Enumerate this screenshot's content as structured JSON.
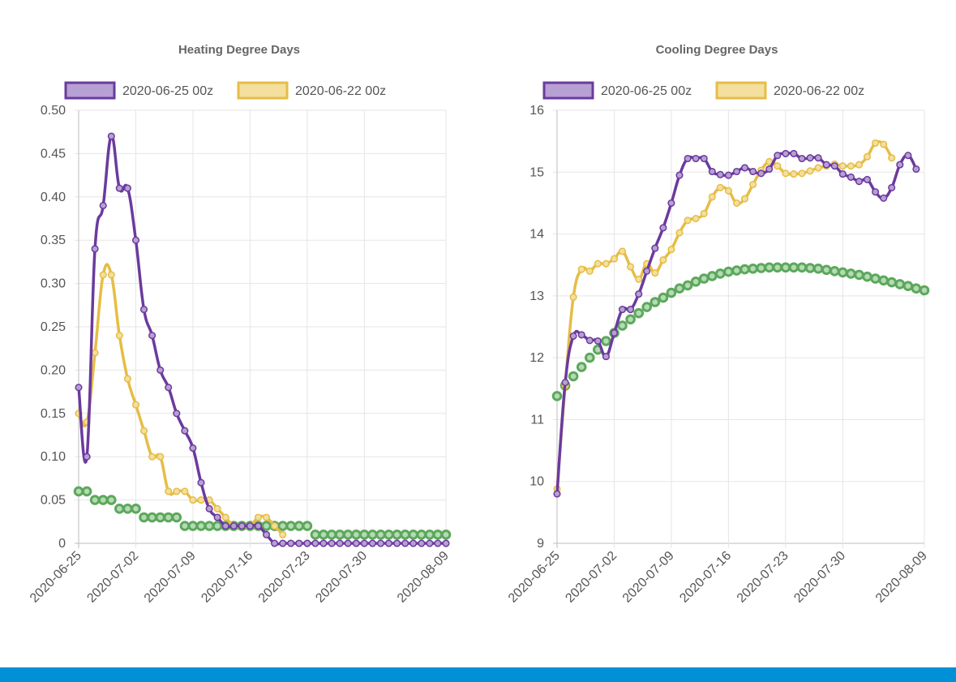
{
  "colors": {
    "run_new": "#6b3a9e",
    "run_new_fill": "#b7a0d3",
    "run_old": "#e6bd45",
    "run_old_fill": "#f3df9e",
    "normal": "#5ca85c",
    "footer": "#0090d6"
  },
  "chart_data": [
    {
      "type": "line",
      "title": "Heating Degree Days",
      "x_start": "2020-06-25",
      "x_ticks": [
        "2020-06-25",
        "2020-07-02",
        "2020-07-09",
        "2020-07-16",
        "2020-07-23",
        "2020-07-30",
        "2020-08-09"
      ],
      "y_ticks": [
        "0",
        "0.05",
        "0.10",
        "0.15",
        "0.20",
        "0.25",
        "0.30",
        "0.35",
        "0.40",
        "0.45",
        "0.50"
      ],
      "ylim": [
        0,
        0.5
      ],
      "grid": true,
      "legend": "top",
      "legend_entries": [
        "2020-06-25 00z",
        "2020-06-22 00z"
      ],
      "series": [
        {
          "name": "2020-06-25 00z",
          "values": [
            0.18,
            0.1,
            0.34,
            0.39,
            0.47,
            0.41,
            0.41,
            0.35,
            0.27,
            0.24,
            0.2,
            0.18,
            0.15,
            0.13,
            0.11,
            0.07,
            0.04,
            0.03,
            0.02,
            0.02,
            0.02,
            0.02,
            0.02,
            0.01,
            0,
            0,
            0,
            0,
            0,
            0,
            0,
            0,
            0,
            0,
            0,
            0,
            0,
            0,
            0,
            0,
            0,
            0,
            0,
            0,
            0,
            0
          ]
        },
        {
          "name": "2020-06-22 00z",
          "values": [
            0.15,
            0.14,
            0.22,
            0.31,
            0.31,
            0.24,
            0.19,
            0.16,
            0.13,
            0.1,
            0.1,
            0.06,
            0.06,
            0.06,
            0.05,
            0.05,
            0.05,
            0.04,
            0.03,
            0.02,
            0.02,
            0.02,
            0.03,
            0.03,
            0.02,
            0.01
          ]
        },
        {
          "name": "",
          "values": [
            0.06,
            0.06,
            0.05,
            0.05,
            0.05,
            0.04,
            0.04,
            0.04,
            0.03,
            0.03,
            0.03,
            0.03,
            0.03,
            0.02,
            0.02,
            0.02,
            0.02,
            0.02,
            0.02,
            0.02,
            0.02,
            0.02,
            0.02,
            0.02,
            0.02,
            0.02,
            0.02,
            0.02,
            0.02,
            0.01,
            0.01,
            0.01,
            0.01,
            0.01,
            0.01,
            0.01,
            0.01,
            0.01,
            0.01,
            0.01,
            0.01,
            0.01,
            0.01,
            0.01,
            0.01,
            0.01
          ]
        }
      ]
    },
    {
      "type": "line",
      "title": "Cooling Degree Days",
      "x_start": "2020-06-25",
      "x_ticks": [
        "2020-06-25",
        "2020-07-02",
        "2020-07-09",
        "2020-07-16",
        "2020-07-23",
        "2020-07-30",
        "2020-08-09"
      ],
      "y_ticks": [
        "9",
        "10",
        "11",
        "12",
        "13",
        "14",
        "15",
        "16"
      ],
      "ylim": [
        9,
        16
      ],
      "grid": true,
      "legend": "top",
      "legend_entries": [
        "2020-06-25 00z",
        "2020-06-22 00z"
      ],
      "series": [
        {
          "name": "2020-06-25 00z",
          "values": [
            9.8,
            11.6,
            12.35,
            12.37,
            12.28,
            12.27,
            12.02,
            12.4,
            12.78,
            12.78,
            13.03,
            13.4,
            13.77,
            14.1,
            14.5,
            14.95,
            15.22,
            15.22,
            15.22,
            15.01,
            14.96,
            14.95,
            15.01,
            15.07,
            15.01,
            14.98,
            15.05,
            15.27,
            15.3,
            15.3,
            15.22,
            15.23,
            15.23,
            15.12,
            15.1,
            14.97,
            14.92,
            14.85,
            14.88,
            14.68,
            14.58,
            14.75,
            15.12,
            15.27,
            15.05
          ]
        },
        {
          "name": "2020-06-22 00z",
          "values": [
            9.88,
            11.55,
            12.98,
            13.43,
            13.4,
            13.52,
            13.52,
            13.6,
            13.72,
            13.47,
            13.27,
            13.52,
            13.37,
            13.58,
            13.75,
            14.02,
            14.22,
            14.25,
            14.33,
            14.6,
            14.75,
            14.7,
            14.5,
            14.57,
            14.8,
            15.03,
            15.17,
            15.1,
            14.98,
            14.97,
            14.98,
            15.02,
            15.07,
            15.1,
            15.13,
            15.1,
            15.1,
            15.12,
            15.25,
            15.47,
            15.45,
            15.23
          ]
        },
        {
          "name": "",
          "values": [
            11.38,
            11.55,
            11.7,
            11.85,
            12.0,
            12.13,
            12.27,
            12.4,
            12.52,
            12.62,
            12.72,
            12.82,
            12.9,
            12.97,
            13.05,
            13.12,
            13.17,
            13.23,
            13.28,
            13.32,
            13.36,
            13.39,
            13.41,
            13.43,
            13.44,
            13.45,
            13.46,
            13.46,
            13.46,
            13.46,
            13.46,
            13.45,
            13.44,
            13.42,
            13.4,
            13.38,
            13.36,
            13.34,
            13.31,
            13.28,
            13.25,
            13.22,
            13.19,
            13.16,
            13.12,
            13.09
          ]
        }
      ]
    }
  ]
}
